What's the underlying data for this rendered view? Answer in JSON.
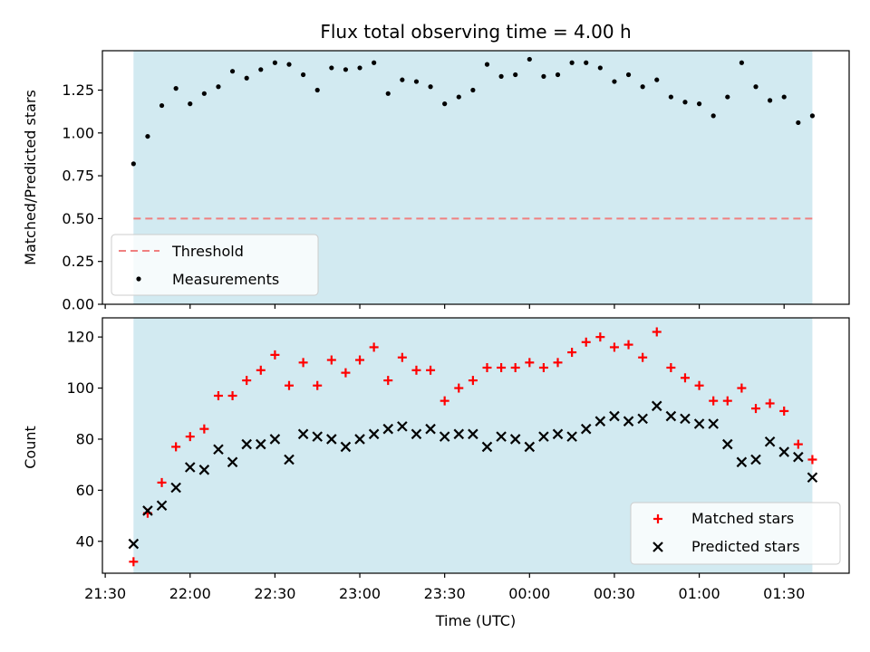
{
  "chart_data": [
    {
      "type": "scatter",
      "title": "Flux total observing time = 4.00 h",
      "xlabel": "",
      "ylabel": "Matched/Predicted stars",
      "x_unit": "time (UTC)",
      "xlim": [
        "21:29",
        "01:53"
      ],
      "ylim": [
        0.0,
        1.48
      ],
      "yticks": [
        0.0,
        0.25,
        0.5,
        0.75,
        1.0,
        1.25
      ],
      "ytick_labels": [
        "0.00",
        "0.25",
        "0.50",
        "0.75",
        "1.00",
        "1.25"
      ],
      "observing_window": {
        "start": "21:40",
        "end": "01:40",
        "color": "#add8e6"
      },
      "threshold": {
        "name": "Threshold",
        "value": 0.5,
        "color": "#f08080",
        "style": "dashed"
      },
      "legend": {
        "location": "lower-left",
        "entries": [
          "Threshold",
          "Measurements"
        ]
      },
      "series": [
        {
          "name": "Measurements",
          "marker": "dot",
          "color": "#000000",
          "x": [
            "21:40",
            "21:45",
            "21:50",
            "21:55",
            "22:00",
            "22:05",
            "22:10",
            "22:15",
            "22:20",
            "22:25",
            "22:30",
            "22:35",
            "22:40",
            "22:45",
            "22:50",
            "22:55",
            "23:00",
            "23:05",
            "23:10",
            "23:15",
            "23:20",
            "23:25",
            "23:30",
            "23:35",
            "23:40",
            "23:45",
            "23:50",
            "23:55",
            "00:00",
            "00:05",
            "00:10",
            "00:15",
            "00:20",
            "00:25",
            "00:30",
            "00:35",
            "00:40",
            "00:45",
            "00:50",
            "00:55",
            "01:00",
            "01:05",
            "01:10",
            "01:15",
            "01:20",
            "01:25",
            "01:30",
            "01:35",
            "01:40"
          ],
          "values": [
            0.82,
            0.98,
            1.16,
            1.26,
            1.17,
            1.23,
            1.27,
            1.36,
            1.32,
            1.37,
            1.41,
            1.4,
            1.34,
            1.25,
            1.38,
            1.37,
            1.38,
            1.41,
            1.23,
            1.31,
            1.3,
            1.27,
            1.17,
            1.21,
            1.25,
            1.4,
            1.33,
            1.34,
            1.43,
            1.33,
            1.34,
            1.41,
            1.41,
            1.38,
            1.3,
            1.34,
            1.27,
            1.31,
            1.21,
            1.18,
            1.17,
            1.1,
            1.21,
            1.41,
            1.27,
            1.19,
            1.21,
            1.06,
            1.1
          ]
        }
      ]
    },
    {
      "type": "scatter",
      "title": "",
      "xlabel": "Time (UTC)",
      "ylabel": "Count",
      "xlim": [
        "21:29",
        "01:53"
      ],
      "ylim": [
        27.5,
        127.5
      ],
      "yticks": [
        40,
        60,
        80,
        100,
        120
      ],
      "ytick_labels": [
        "40",
        "60",
        "80",
        "100",
        "120"
      ],
      "xticks": [
        "21:30",
        "22:00",
        "22:30",
        "23:00",
        "23:30",
        "00:00",
        "00:30",
        "01:00",
        "01:30"
      ],
      "xtick_labels": [
        "21:30",
        "22:00",
        "22:30",
        "23:00",
        "23:30",
        "00:00",
        "00:30",
        "01:00",
        "01:30"
      ],
      "observing_window": {
        "start": "21:40",
        "end": "01:40",
        "color": "#add8e6"
      },
      "legend": {
        "location": "lower-right",
        "entries": [
          "Matched stars",
          "Predicted stars"
        ]
      },
      "series": [
        {
          "name": "Matched stars",
          "marker": "plus",
          "color": "#ff0000",
          "x": [
            "21:40",
            "21:45",
            "21:50",
            "21:55",
            "22:00",
            "22:05",
            "22:10",
            "22:15",
            "22:20",
            "22:25",
            "22:30",
            "22:35",
            "22:40",
            "22:45",
            "22:50",
            "22:55",
            "23:00",
            "23:05",
            "23:10",
            "23:15",
            "23:20",
            "23:25",
            "23:30",
            "23:35",
            "23:40",
            "23:45",
            "23:50",
            "23:55",
            "00:00",
            "00:05",
            "00:10",
            "00:15",
            "00:20",
            "00:25",
            "00:30",
            "00:35",
            "00:40",
            "00:45",
            "00:50",
            "00:55",
            "01:00",
            "01:05",
            "01:10",
            "01:15",
            "01:20",
            "01:25",
            "01:30",
            "01:35",
            "01:40"
          ],
          "values": [
            32,
            51,
            63,
            77,
            81,
            84,
            97,
            97,
            103,
            107,
            113,
            101,
            110,
            101,
            111,
            106,
            111,
            116,
            103,
            112,
            107,
            107,
            95,
            100,
            103,
            108,
            108,
            108,
            110,
            108,
            110,
            114,
            118,
            120,
            116,
            117,
            112,
            122,
            108,
            104,
            101,
            95,
            95,
            100,
            92,
            94,
            91,
            78,
            72
          ]
        },
        {
          "name": "Predicted stars",
          "marker": "x",
          "color": "#000000",
          "x": [
            "21:40",
            "21:45",
            "21:50",
            "21:55",
            "22:00",
            "22:05",
            "22:10",
            "22:15",
            "22:20",
            "22:25",
            "22:30",
            "22:35",
            "22:40",
            "22:45",
            "22:50",
            "22:55",
            "23:00",
            "23:05",
            "23:10",
            "23:15",
            "23:20",
            "23:25",
            "23:30",
            "23:35",
            "23:40",
            "23:45",
            "23:50",
            "23:55",
            "00:00",
            "00:05",
            "00:10",
            "00:15",
            "00:20",
            "00:25",
            "00:30",
            "00:35",
            "00:40",
            "00:45",
            "00:50",
            "00:55",
            "01:00",
            "01:05",
            "01:10",
            "01:15",
            "01:20",
            "01:25",
            "01:30",
            "01:35",
            "01:40"
          ],
          "values": [
            39,
            52,
            54,
            61,
            69,
            68,
            76,
            71,
            78,
            78,
            80,
            72,
            82,
            81,
            80,
            77,
            80,
            82,
            84,
            85,
            82,
            84,
            81,
            82,
            82,
            77,
            81,
            80,
            77,
            81,
            82,
            81,
            84,
            87,
            89,
            87,
            88,
            93,
            89,
            88,
            86,
            86,
            78,
            71,
            72,
            79,
            75,
            73,
            65
          ]
        }
      ]
    }
  ]
}
